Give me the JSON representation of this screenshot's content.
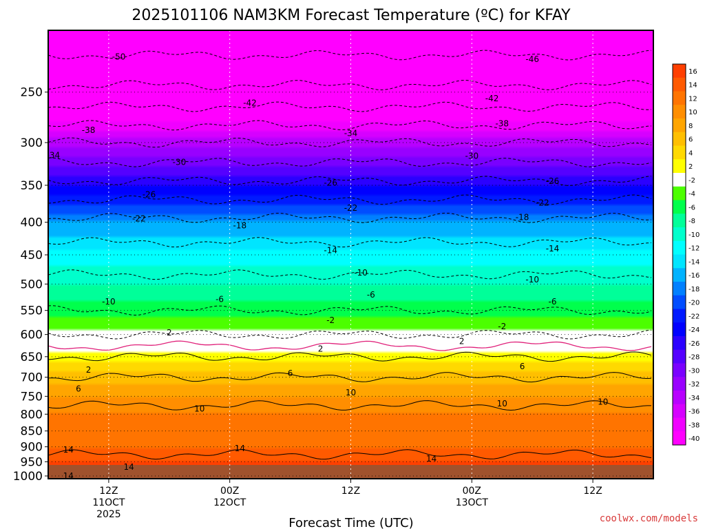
{
  "chart_data": {
    "type": "heatmap",
    "title": "2025101106 NAM3KM Forecast Temperature (ºC) for KFAY",
    "xlabel": "Forecast Time (UTC)",
    "ylabel": "",
    "x_ticks": [
      {
        "hour": 6,
        "lines": [
          "12Z",
          "11OCT",
          "2025"
        ]
      },
      {
        "hour": 18,
        "lines": [
          "00Z",
          "12OCT"
        ]
      },
      {
        "hour": 30,
        "lines": [
          "12Z"
        ]
      },
      {
        "hour": 42,
        "lines": [
          "00Z",
          "13OCT"
        ]
      },
      {
        "hour": 54,
        "lines": [
          "12Z"
        ]
      }
    ],
    "xlim_hours": [
      0,
      60
    ],
    "y_ticks": [
      250,
      300,
      350,
      400,
      450,
      500,
      550,
      600,
      650,
      700,
      750,
      800,
      850,
      900,
      950,
      1000
    ],
    "ylim_mb": [
      1010,
      200
    ],
    "colorbar": {
      "levels": [
        16,
        14,
        12,
        10,
        8,
        6,
        4,
        2,
        -2,
        -4,
        -6,
        -8,
        -10,
        -12,
        -14,
        -16,
        -18,
        -20,
        -22,
        -24,
        -26,
        -28,
        -30,
        -32,
        -34,
        -36,
        -38,
        -40
      ],
      "colors": [
        "#ff3f00",
        "#ff5a00",
        "#ff7400",
        "#ff8e00",
        "#ffa500",
        "#ffbf00",
        "#ffd900",
        "#ffff00",
        "#ffffff",
        "#4cff00",
        "#00ff4c",
        "#00ff99",
        "#00ffcc",
        "#00ffff",
        "#00e5ff",
        "#00b3ff",
        "#0080ff",
        "#004dff",
        "#001aff",
        "#0000ff",
        "#2b00ff",
        "#5500ff",
        "#7a00ff",
        "#9900ff",
        "#b800ff",
        "#d600ff",
        "#f000ff",
        "#ff00ff"
      ]
    },
    "profile_mb": [
      200,
      250,
      300,
      350,
      400,
      450,
      500,
      550,
      600,
      650,
      700,
      750,
      800,
      850,
      900,
      950,
      1000
    ],
    "profile_temp_c": [
      -53,
      -45,
      -34,
      -25,
      -17,
      -12,
      -9,
      -6,
      -2,
      2,
      6,
      9,
      11,
      12,
      13,
      15,
      16
    ],
    "contour_labels": [
      {
        "text": "-50",
        "hour": 7,
        "mb": 220
      },
      {
        "text": "-46",
        "hour": 48,
        "mb": 222
      },
      {
        "text": "-42",
        "hour": 20,
        "mb": 260
      },
      {
        "text": "-42",
        "hour": 44,
        "mb": 256
      },
      {
        "text": "-38",
        "hour": 4,
        "mb": 287
      },
      {
        "text": "-38",
        "hour": 45,
        "mb": 280
      },
      {
        "text": "-34",
        "hour": 0.5,
        "mb": 314
      },
      {
        "text": "-34",
        "hour": 30,
        "mb": 290
      },
      {
        "text": "-30",
        "hour": 13,
        "mb": 322
      },
      {
        "text": "-30",
        "hour": 42,
        "mb": 315
      },
      {
        "text": "-26",
        "hour": 10,
        "mb": 362
      },
      {
        "text": "-26",
        "hour": 28,
        "mb": 347
      },
      {
        "text": "-26",
        "hour": 50,
        "mb": 345
      },
      {
        "text": "-22",
        "hour": 9,
        "mb": 395
      },
      {
        "text": "-22",
        "hour": 30,
        "mb": 380
      },
      {
        "text": "-22",
        "hour": 49,
        "mb": 373
      },
      {
        "text": "-18",
        "hour": 19,
        "mb": 405
      },
      {
        "text": "-18",
        "hour": 47,
        "mb": 393
      },
      {
        "text": "-14",
        "hour": 28,
        "mb": 443
      },
      {
        "text": "-14",
        "hour": 50,
        "mb": 440
      },
      {
        "text": "-10",
        "hour": 6,
        "mb": 533
      },
      {
        "text": "-10",
        "hour": 31,
        "mb": 480
      },
      {
        "text": "-10",
        "hour": 48,
        "mb": 492
      },
      {
        "text": "-6",
        "hour": 17,
        "mb": 528
      },
      {
        "text": "-6",
        "hour": 32,
        "mb": 520
      },
      {
        "text": "-6",
        "hour": 50,
        "mb": 533
      },
      {
        "text": "-2",
        "hour": 28,
        "mb": 570
      },
      {
        "text": "-2",
        "hour": 45,
        "mb": 583
      },
      {
        "text": "2",
        "hour": 12,
        "mb": 596
      },
      {
        "text": "2",
        "hour": 27,
        "mb": 632
      },
      {
        "text": "2",
        "hour": 41,
        "mb": 615
      },
      {
        "text": "2",
        "hour": 4,
        "mb": 682
      },
      {
        "text": "6",
        "hour": 3,
        "mb": 730
      },
      {
        "text": "6",
        "hour": 24,
        "mb": 690
      },
      {
        "text": "6",
        "hour": 47,
        "mb": 673
      },
      {
        "text": "10",
        "hour": 15,
        "mb": 785
      },
      {
        "text": "10",
        "hour": 30,
        "mb": 740
      },
      {
        "text": "10",
        "hour": 45,
        "mb": 770
      },
      {
        "text": "10",
        "hour": 55,
        "mb": 765
      },
      {
        "text": "14",
        "hour": 2,
        "mb": 910
      },
      {
        "text": "14",
        "hour": 8,
        "mb": 968
      },
      {
        "text": "14",
        "hour": 19,
        "mb": 905
      },
      {
        "text": "14",
        "hour": 38,
        "mb": 940
      },
      {
        "text": "14",
        "hour": 2,
        "mb": 1000
      }
    ]
  },
  "credit": "coolwx.com/models"
}
